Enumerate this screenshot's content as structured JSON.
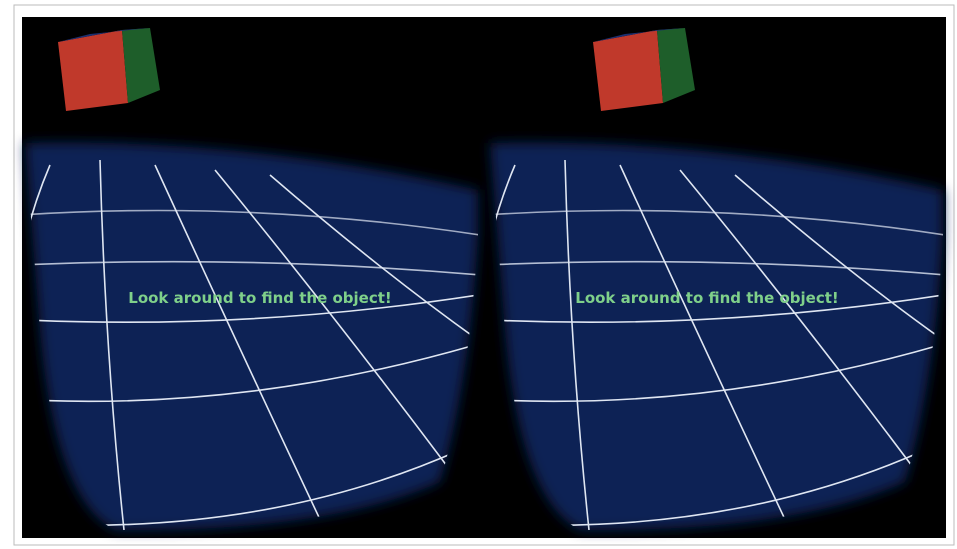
{
  "left_view": {
    "message": "Look around to find the object!"
  },
  "right_view": {
    "message": "Look around to find the object!"
  }
}
